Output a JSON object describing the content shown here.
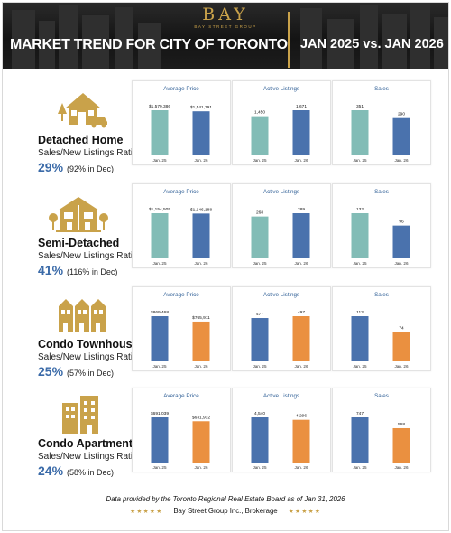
{
  "header": {
    "logo_word": "BAY",
    "logo_sub": "BAY STREET GROUP",
    "title": "MARKET TREND FOR CITY OF TORONTO",
    "period": "JAN 2025 vs. JAN 2026"
  },
  "colors": {
    "teal": "#82bcb6",
    "blue": "#4a72ad",
    "orange": "#ea9040",
    "gold": "#c9a24a",
    "ratio_blue": "#3a6aa8"
  },
  "panel_titles": [
    "Average Price",
    "Active Listings",
    "Sales"
  ],
  "ratio_label": "Sales/New Listings Ratio:",
  "rows": [
    {
      "name": "Detached Home",
      "icon": "detached-home-icon",
      "ratio": "29%",
      "ratio_note": "(92% in Dec)"
    },
    {
      "name": "Semi-Detached",
      "icon": "semi-detached-icon",
      "ratio": "41%",
      "ratio_note": "(116% in Dec)"
    },
    {
      "name": "Condo Townhouse",
      "icon": "condo-townhouse-icon",
      "ratio": "25%",
      "ratio_note": "(57% in Dec)"
    },
    {
      "name": "Condo Apartment",
      "icon": "condo-apartment-icon",
      "ratio": "24%",
      "ratio_note": "(58% in Dec)"
    }
  ],
  "chart_data": [
    {
      "type": "bar",
      "title": "Average Price",
      "group": "Detached Home",
      "categories": [
        "Jan. 25",
        "Jan. 26"
      ],
      "values": [
        1579386,
        1541791
      ],
      "labels": [
        "$1,579,386",
        "$1,541,791"
      ],
      "colors": [
        "#82bcb6",
        "#4a72ad"
      ]
    },
    {
      "type": "bar",
      "title": "Active Listings",
      "group": "Detached Home",
      "categories": [
        "Jan. 25",
        "Jan. 26"
      ],
      "values": [
        1450,
        1671
      ],
      "labels": [
        "1,450",
        "1,671"
      ],
      "colors": [
        "#82bcb6",
        "#4a72ad"
      ]
    },
    {
      "type": "bar",
      "title": "Sales",
      "group": "Detached Home",
      "categories": [
        "Jan. 25",
        "Jan. 26"
      ],
      "values": [
        351,
        290
      ],
      "labels": [
        "351",
        "290"
      ],
      "colors": [
        "#82bcb6",
        "#4a72ad"
      ]
    },
    {
      "type": "bar",
      "title": "Average Price",
      "group": "Semi-Detached",
      "categories": [
        "Jan. 25",
        "Jan. 26"
      ],
      "values": [
        1154505,
        1146188
      ],
      "labels": [
        "$1,154,505",
        "$1,146,188"
      ],
      "colors": [
        "#82bcb6",
        "#4a72ad"
      ]
    },
    {
      "type": "bar",
      "title": "Active Listings",
      "group": "Semi-Detached",
      "categories": [
        "Jan. 25",
        "Jan. 26"
      ],
      "values": [
        268,
        289
      ],
      "labels": [
        "268",
        "289"
      ],
      "colors": [
        "#82bcb6",
        "#4a72ad"
      ]
    },
    {
      "type": "bar",
      "title": "Sales",
      "group": "Semi-Detached",
      "categories": [
        "Jan. 25",
        "Jan. 26"
      ],
      "values": [
        132,
        96
      ],
      "labels": [
        "132",
        "96"
      ],
      "colors": [
        "#82bcb6",
        "#4a72ad"
      ]
    },
    {
      "type": "bar",
      "title": "Average Price",
      "group": "Condo Townhouse",
      "categories": [
        "Jan. 25",
        "Jan. 26"
      ],
      "values": [
        869468,
        765911
      ],
      "labels": [
        "$869,468",
        "$765,911"
      ],
      "colors": [
        "#4a72ad",
        "#ea9040"
      ]
    },
    {
      "type": "bar",
      "title": "Active Listings",
      "group": "Condo Townhouse",
      "categories": [
        "Jan. 25",
        "Jan. 26"
      ],
      "values": [
        477,
        497
      ],
      "labels": [
        "477",
        "497"
      ],
      "colors": [
        "#4a72ad",
        "#ea9040"
      ]
    },
    {
      "type": "bar",
      "title": "Sales",
      "group": "Condo Townhouse",
      "categories": [
        "Jan. 25",
        "Jan. 26"
      ],
      "values": [
        113,
        74
      ],
      "labels": [
        "113",
        "74"
      ],
      "colors": [
        "#4a72ad",
        "#ea9040"
      ]
    },
    {
      "type": "bar",
      "title": "Average Price",
      "group": "Condo Apartment",
      "categories": [
        "Jan. 25",
        "Jan. 26"
      ],
      "values": [
        691039,
        631932
      ],
      "labels": [
        "$691,039",
        "$631,932"
      ],
      "colors": [
        "#4a72ad",
        "#ea9040"
      ]
    },
    {
      "type": "bar",
      "title": "Active Listings",
      "group": "Condo Apartment",
      "categories": [
        "Jan. 25",
        "Jan. 26"
      ],
      "values": [
        4540,
        4296
      ],
      "labels": [
        "4,540",
        "4,296"
      ],
      "colors": [
        "#4a72ad",
        "#ea9040"
      ]
    },
    {
      "type": "bar",
      "title": "Sales",
      "group": "Condo Apartment",
      "categories": [
        "Jan. 25",
        "Jan. 26"
      ],
      "values": [
        747,
        568
      ],
      "labels": [
        "747",
        "568"
      ],
      "colors": [
        "#4a72ad",
        "#ea9040"
      ]
    }
  ],
  "footer": {
    "note": "Data provided by the Toronto Regional Real Estate Board as of Jan 31, 2026",
    "brand": "Bay Street Group Inc., Brokerage",
    "stars": "★★★★★"
  }
}
